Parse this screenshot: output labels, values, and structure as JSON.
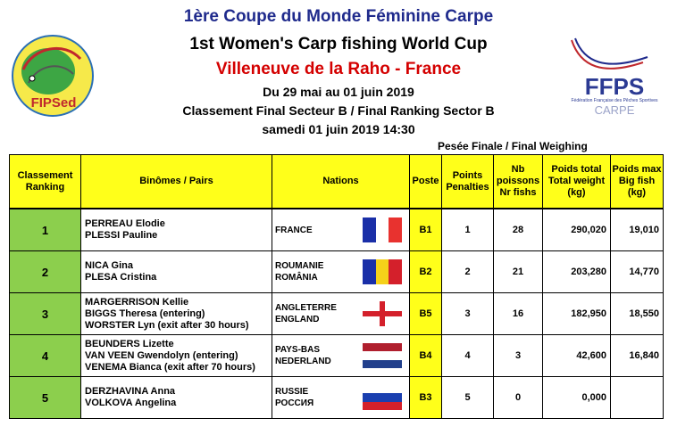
{
  "header": {
    "line1": "1ère Coupe du Monde Féminine Carpe",
    "line2": "1st Women's Carp fishing World Cup",
    "line3": "Villeneuve de la Raho - France",
    "line4": "Du 29 mai au 01 juin 2019",
    "line5": "Classement Final Secteur B / Final Ranking Sector B",
    "line6": "samedi 01 juin 2019 14:30",
    "weighing": "Pesée Finale / Final Weighing"
  },
  "logos": {
    "left_text": "FIPSed",
    "right_text": "FFPS",
    "right_sub": "Fédération Française des Pêches Sportives",
    "right_carpe": "CARPE"
  },
  "columns": {
    "rank": [
      "Classement",
      "Ranking"
    ],
    "pairs": "Binômes / Pairs",
    "nations": "Nations",
    "poste": "Poste",
    "points": [
      "Points",
      "Penalties"
    ],
    "nb": [
      "Nb",
      "poissons",
      "Nr fishs"
    ],
    "total": [
      "Poids total",
      "Total weight",
      "(kg)"
    ],
    "max": [
      "Poids max",
      "Big fish",
      "(kg)"
    ]
  },
  "rows": [
    {
      "rank": "1",
      "pairs": [
        "PERREAU Elodie",
        "PLESSI Pauline"
      ],
      "nations": [
        "FRANCE"
      ],
      "flag": "france",
      "poste": "B1",
      "points": "1",
      "nb": "28",
      "total": "290,020",
      "max": "19,010"
    },
    {
      "rank": "2",
      "pairs": [
        "NICA Gina",
        "PLESA Cristina"
      ],
      "nations": [
        "ROUMANIE",
        "ROMÂNIA"
      ],
      "flag": "romania",
      "poste": "B2",
      "points": "2",
      "nb": "21",
      "total": "203,280",
      "max": "14,770"
    },
    {
      "rank": "3",
      "pairs": [
        "MARGERRISON Kellie",
        "BIGGS Theresa (entering)",
        "WORSTER Lyn (exit after 30 hours)"
      ],
      "nations": [
        "ANGLETERRE",
        "ENGLAND"
      ],
      "flag": "england",
      "poste": "B5",
      "points": "3",
      "nb": "16",
      "total": "182,950",
      "max": "18,550"
    },
    {
      "rank": "4",
      "pairs": [
        "BEUNDERS Lizette",
        "VAN VEEN Gwendolyn (entering)",
        "VENEMA Bianca (exit after 70 hours)"
      ],
      "nations": [
        "PAYS-BAS",
        "NEDERLAND"
      ],
      "flag": "netherlands",
      "poste": "B4",
      "points": "4",
      "nb": "3",
      "total": "42,600",
      "max": "16,840"
    },
    {
      "rank": "5",
      "pairs": [
        "DERZHAVINA Anna",
        "VOLKOVA Angelina"
      ],
      "nations": [
        "RUSSIE",
        "РОССИЯ"
      ],
      "flag": "russia",
      "poste": "B3",
      "points": "5",
      "nb": "0",
      "total": "0,000",
      "max": ""
    }
  ],
  "colors": {
    "header_yellow": "#ffff1a",
    "rank_green": "#8ccf4d",
    "title_blue": "#1f2a8c",
    "title_red": "#d40000"
  }
}
